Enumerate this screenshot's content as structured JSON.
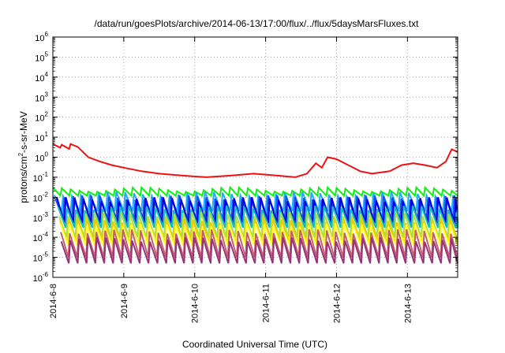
{
  "chart_data": {
    "type": "line",
    "title": "/data/run/goesPlots/archive/2014-06-13/17:00/flux/../flux/5daysMarsFluxes.txt",
    "xlabel": "Coordinated Universal Time (UTC)",
    "ylabel_parts": [
      "protons/cm",
      "2",
      "-s-sr-MeV"
    ],
    "y_scale": "log",
    "ylim": [
      1e-06,
      1000000.0
    ],
    "y_ticks": [
      {
        "base": "10",
        "exp": "-6"
      },
      {
        "base": "10",
        "exp": "-5"
      },
      {
        "base": "10",
        "exp": "-4"
      },
      {
        "base": "10",
        "exp": "-3"
      },
      {
        "base": "10",
        "exp": "-2"
      },
      {
        "base": "10",
        "exp": "-1"
      },
      {
        "base": "10",
        "exp": "0"
      },
      {
        "base": "10",
        "exp": "1"
      },
      {
        "base": "10",
        "exp": "2"
      },
      {
        "base": "10",
        "exp": "3"
      },
      {
        "base": "10",
        "exp": "4"
      },
      {
        "base": "10",
        "exp": "5"
      },
      {
        "base": "10",
        "exp": "6"
      }
    ],
    "x_ticks": [
      "2014-6-8",
      "2014-6-9",
      "2014-6-10",
      "2014-6-11",
      "2014-6-12",
      "2014-6-13"
    ],
    "xlim": [
      "2014-06-08T00:00",
      "2014-06-13T17:00"
    ],
    "grid": true,
    "grid_style": "dotted",
    "series": [
      {
        "color": "#ee1111",
        "kind": "smooth",
        "points": [
          [
            "2014-06-08T00:00",
            4.5
          ],
          [
            "2014-06-08T02:30",
            3.0
          ],
          [
            "2014-06-08T03:00",
            4.2
          ],
          [
            "2014-06-08T05:30",
            2.6
          ],
          [
            "2014-06-08T06:00",
            4.6
          ],
          [
            "2014-06-08T08:30",
            3.2
          ],
          [
            "2014-06-08T12:00",
            1.0
          ],
          [
            "2014-06-08T16:00",
            0.6
          ],
          [
            "2014-06-08T20:00",
            0.4
          ],
          [
            "2014-06-09T00:00",
            0.3
          ],
          [
            "2014-06-09T06:00",
            0.2
          ],
          [
            "2014-06-09T12:00",
            0.15
          ],
          [
            "2014-06-09T20:00",
            0.12
          ],
          [
            "2014-06-10T04:00",
            0.1
          ],
          [
            "2014-06-10T12:00",
            0.12
          ],
          [
            "2014-06-10T20:00",
            0.15
          ],
          [
            "2014-06-11T04:00",
            0.12
          ],
          [
            "2014-06-11T10:00",
            0.1
          ],
          [
            "2014-06-11T14:00",
            0.15
          ],
          [
            "2014-06-11T17:00",
            0.5
          ],
          [
            "2014-06-11T19:00",
            0.3
          ],
          [
            "2014-06-11T21:00",
            1.0
          ],
          [
            "2014-06-12T00:00",
            0.8
          ],
          [
            "2014-06-12T04:00",
            0.4
          ],
          [
            "2014-06-12T08:00",
            0.2
          ],
          [
            "2014-06-12T12:00",
            0.15
          ],
          [
            "2014-06-12T18:00",
            0.2
          ],
          [
            "2014-06-12T22:00",
            0.4
          ],
          [
            "2014-06-13T02:00",
            0.5
          ],
          [
            "2014-06-13T06:00",
            0.4
          ],
          [
            "2014-06-13T10:00",
            0.3
          ],
          [
            "2014-06-13T13:00",
            0.6
          ],
          [
            "2014-06-13T15:00",
            2.5
          ],
          [
            "2014-06-13T17:00",
            1.8
          ]
        ]
      },
      {
        "color": "#11ee11",
        "kind": "sawtooth",
        "peak": 0.025,
        "trough": 0.012,
        "phase": 0.0
      },
      {
        "color": "#22aaff",
        "kind": "sawtooth",
        "peak": 0.015,
        "trough": 0.002,
        "phase": 0.15
      },
      {
        "color": "#1155ee",
        "kind": "sawtooth",
        "peak": 0.01,
        "trough": 0.0008,
        "phase": 0.3
      },
      {
        "color": "#0000dd",
        "kind": "sawtooth",
        "peak": 0.008,
        "trough": 0.0005,
        "phase": 0.45
      },
      {
        "color": "#11bbbb",
        "kind": "sawtooth",
        "peak": 0.003,
        "trough": 0.0003,
        "phase": 0.6
      },
      {
        "color": "#aadd55",
        "kind": "sawtooth",
        "peak": 0.0015,
        "trough": 0.0001,
        "phase": 0.7
      },
      {
        "color": "#eecc00",
        "kind": "sawtooth",
        "peak": 0.0007,
        "trough": 5e-05,
        "phase": 0.8
      },
      {
        "color": "#ffff33",
        "kind": "sawtooth",
        "peak": 0.0004,
        "trough": 4e-05,
        "phase": 0.85
      },
      {
        "color": "#c06070",
        "kind": "sawtooth",
        "peak": 0.0002,
        "trough": 1e-05,
        "phase": 0.9
      },
      {
        "color": "#993377",
        "kind": "sawtooth",
        "peak": 8e-05,
        "trough": 5e-06,
        "phase": 0.95
      }
    ]
  }
}
